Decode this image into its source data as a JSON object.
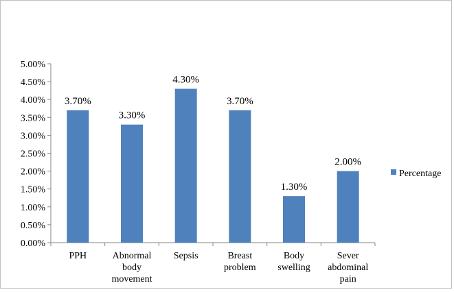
{
  "chart_data": {
    "type": "bar",
    "title": "",
    "xlabel": "",
    "ylabel": "",
    "ylim": [
      0,
      5
    ],
    "y_ticks": [
      "0.00%",
      "0.50%",
      "1.00%",
      "1.50%",
      "2.00%",
      "2.50%",
      "3.00%",
      "3.50%",
      "4.00%",
      "4.50%",
      "5.00%"
    ],
    "grid": false,
    "legend_position": "right",
    "categories": [
      [
        "PPH"
      ],
      [
        "Abnormal",
        "body",
        "movement"
      ],
      [
        "Sepsis"
      ],
      [
        "Breast",
        "problem"
      ],
      [
        "Body",
        "swelling"
      ],
      [
        "Sever",
        "abdominal",
        "pain"
      ]
    ],
    "series": [
      {
        "name": "Percentage",
        "color": "#4f81bd",
        "values": [
          3.7,
          3.3,
          4.3,
          3.7,
          1.3,
          2.0
        ],
        "labels": [
          "3.70%",
          "3.30%",
          "4.30%",
          "3.70%",
          "1.30%",
          "2.00%"
        ]
      }
    ]
  }
}
